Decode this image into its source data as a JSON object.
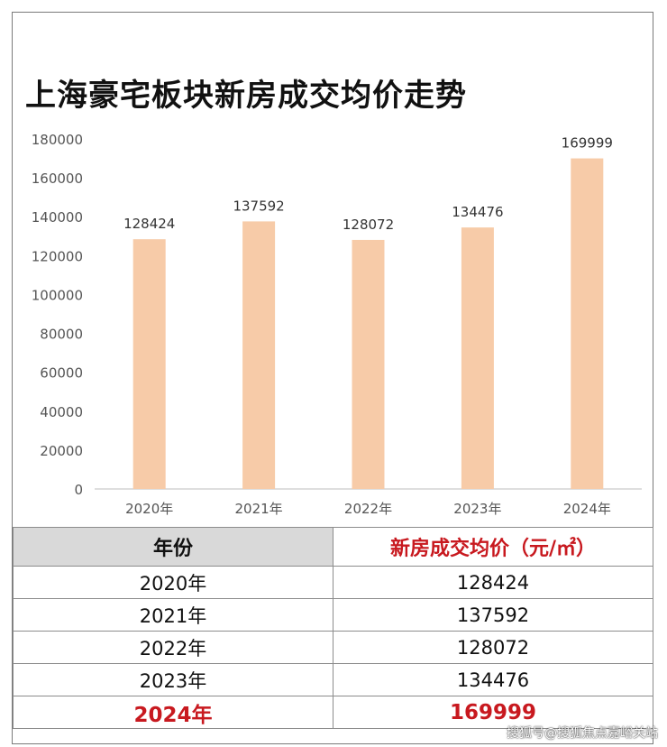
{
  "title": "上海豪宅板块新房成交均价走势",
  "colors": {
    "bar": "#f7cba8",
    "axis_text": "#555555",
    "highlight": "#c8191f"
  },
  "chart_data": {
    "type": "bar",
    "categories": [
      "2020年",
      "2021年",
      "2022年",
      "2023年",
      "2024年"
    ],
    "values": [
      128424,
      137592,
      128072,
      134476,
      169999
    ],
    "data_labels": [
      "128424",
      "137592",
      "128072",
      "134476",
      "169999"
    ],
    "ylim": [
      0,
      180000
    ],
    "yticks": [
      "0",
      "20000",
      "40000",
      "60000",
      "80000",
      "100000",
      "120000",
      "140000",
      "160000",
      "180000"
    ],
    "grid": false,
    "legend": "none",
    "title": "上海豪宅板块新房成交均价走势",
    "xlabel": "",
    "ylabel": ""
  },
  "table": {
    "headers": [
      "年份",
      "新房成交均价（元/㎡）"
    ],
    "rows": [
      [
        "2020年",
        "128424"
      ],
      [
        "2021年",
        "137592"
      ],
      [
        "2022年",
        "128072"
      ],
      [
        "2023年",
        "134476"
      ],
      [
        "2024年",
        "169999"
      ]
    ]
  },
  "watermark": "搜狐号@搜狐焦点嘉峪关站"
}
